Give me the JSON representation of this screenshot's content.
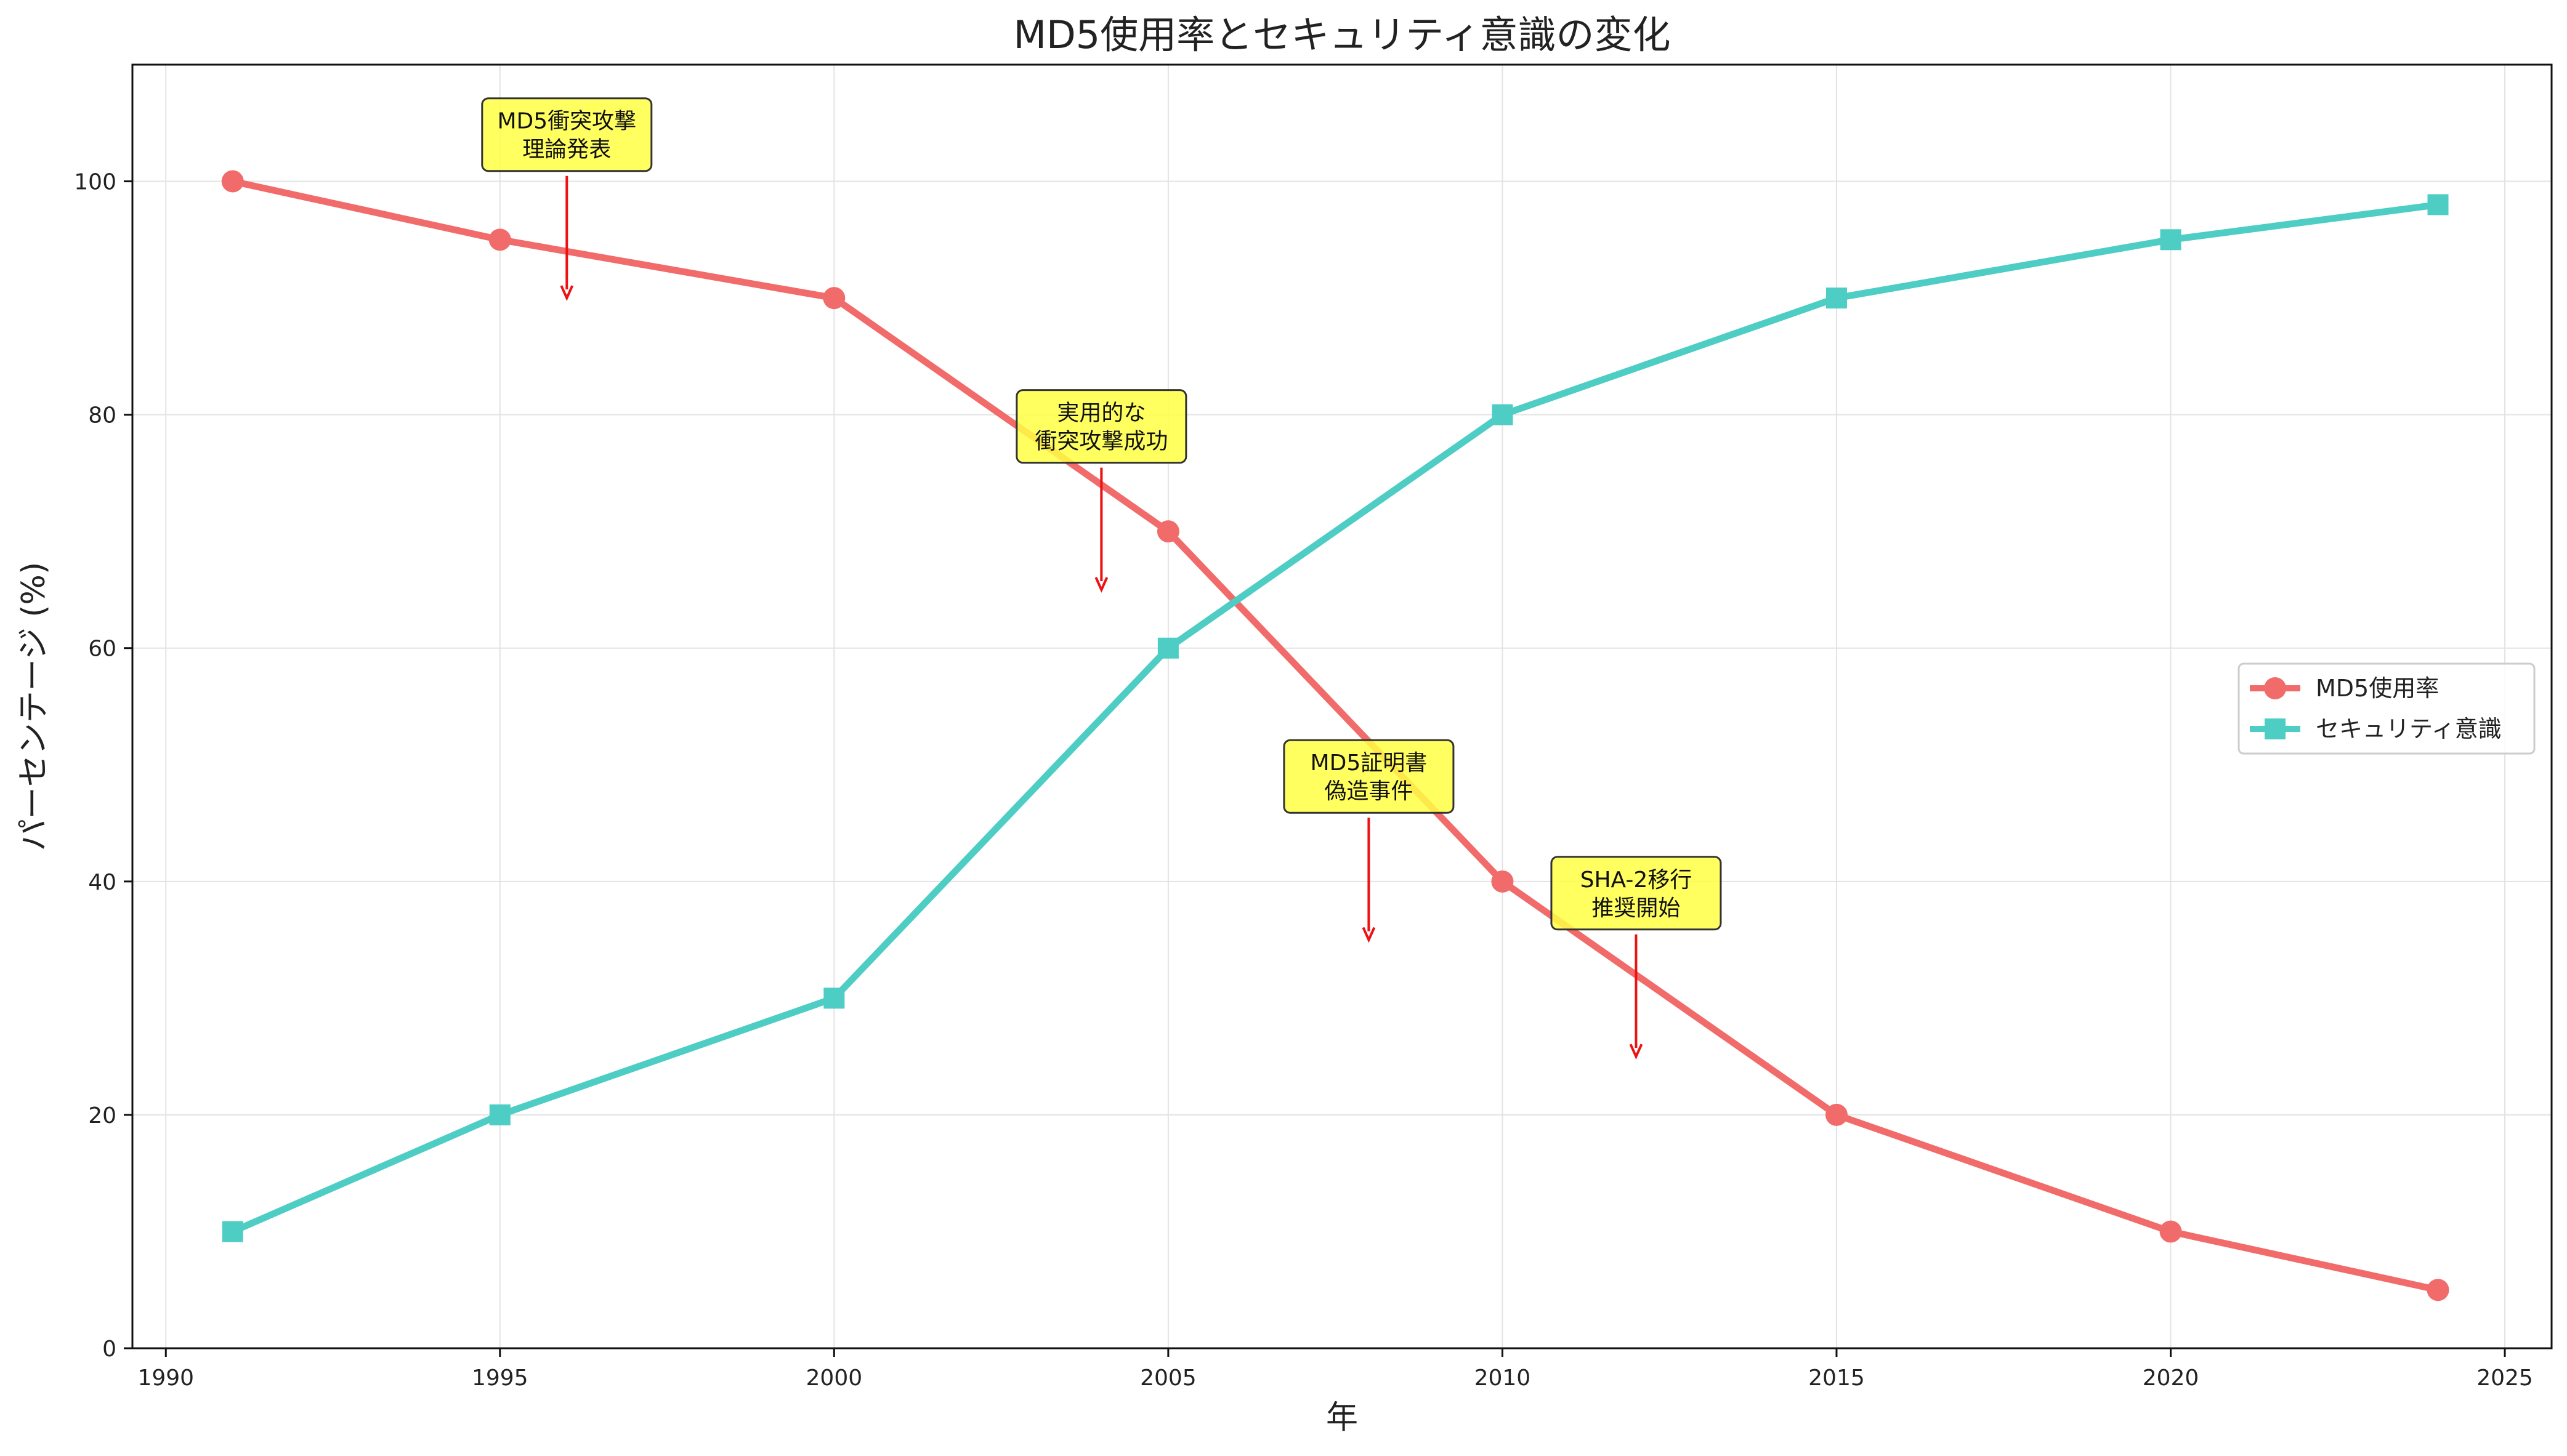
{
  "chart_data": {
    "type": "line",
    "title": "MD5使用率とセキュリティ意識の変化",
    "xlabel": "年",
    "ylabel": "パーセンテージ (%)",
    "xlim": [
      1989.5,
      2025.7
    ],
    "ylim": [
      0,
      110
    ],
    "xticks": [
      1990,
      1995,
      2000,
      2005,
      2010,
      2015,
      2020,
      2025
    ],
    "yticks": [
      0,
      20,
      40,
      60,
      80,
      100
    ],
    "grid": true,
    "legend_position": "center-right",
    "series": [
      {
        "name": "MD5使用率",
        "color": "#f26b6b",
        "marker": "circle",
        "x": [
          1991,
          1995,
          2000,
          2005,
          2010,
          2015,
          2020,
          2024
        ],
        "y": [
          100,
          95,
          90,
          70,
          40,
          20,
          10,
          5
        ]
      },
      {
        "name": "セキュリティ意識",
        "color": "#4ecdc4",
        "marker": "square",
        "x": [
          1991,
          1995,
          2000,
          2005,
          2010,
          2015,
          2020,
          2024
        ],
        "y": [
          10,
          20,
          30,
          60,
          80,
          90,
          95,
          98
        ]
      }
    ],
    "annotations": [
      {
        "lines": [
          "MD5衝突攻撃",
          "理論発表"
        ],
        "x": 1996,
        "y": 90,
        "text_y": 104
      },
      {
        "lines": [
          "実用的な",
          "衝突攻撃成功"
        ],
        "x": 2004,
        "y": 65,
        "text_y": 79
      },
      {
        "lines": [
          "MD5証明書",
          "偽造事件"
        ],
        "x": 2008,
        "y": 35,
        "text_y": 49
      },
      {
        "lines": [
          "SHA-2移行",
          "推奨開始"
        ],
        "x": 2012,
        "y": 25,
        "text_y": 39
      }
    ],
    "annotation_colors": {
      "box": "#ffff44",
      "arrow": "#ee1111"
    }
  }
}
